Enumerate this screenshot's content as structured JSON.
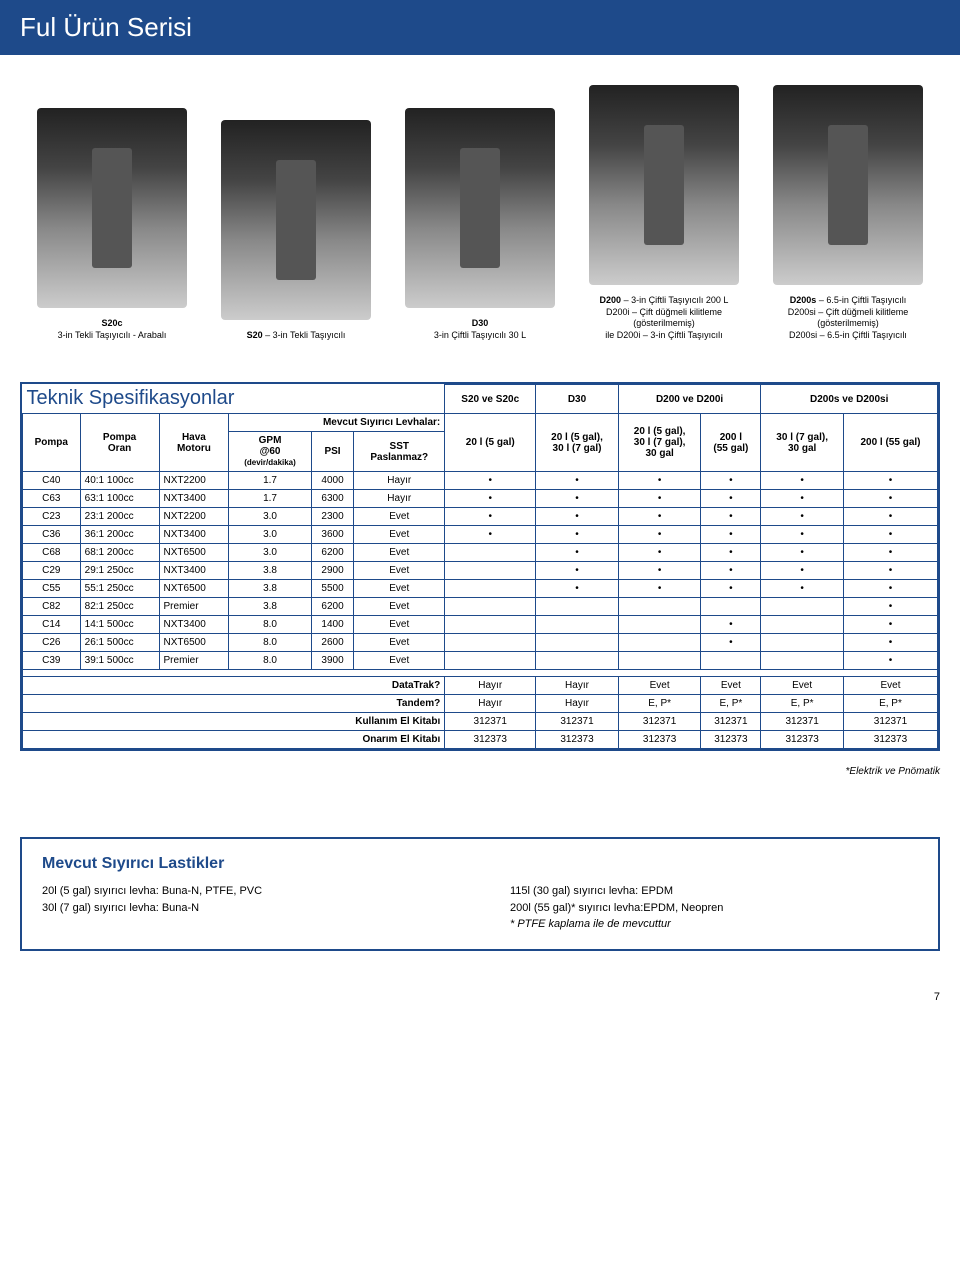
{
  "page": {
    "title": "Ful Ürün Serisi",
    "page_number": "7"
  },
  "products": [
    {
      "label_bold": "S20c",
      "label_lines": [
        "3-in Tekli Taşıyıcılı - Arabalı"
      ]
    },
    {
      "label_bold": "S20",
      "label_lines": [
        "– 3-in Tekli Taşıyıcılı"
      ]
    },
    {
      "label_bold": "D30",
      "label_lines": [
        "3-in Çiftli Taşıyıcılı 30 L"
      ]
    },
    {
      "label_bold": "D200",
      "label_lines": [
        "– 3-in Çiftli Taşıyıcılı 200 L",
        "D200i – Çift düğmeli kilitleme (gösterilmemiş)",
        "ile D200i – 3-in Çiftli Taşıyıcılı"
      ]
    },
    {
      "label_bold": "D200s",
      "label_lines": [
        "– 6.5-in Çiftli Taşıyıcılı",
        "D200si – Çift düğmeli kilitleme (gösterilmemiş)",
        "D200si – 6.5-in Çiftli Taşıyıcılı"
      ]
    }
  ],
  "spec_table": {
    "title": "Teknik Spesifikasyonlar",
    "top_groups": [
      "S20 ve S20c",
      "D30",
      "D200 ve D200i",
      "D200s ve D200si"
    ],
    "levhalar_label": "Mevcut Sıyırıcı Levhalar:",
    "levhalar_cols": [
      "20 l (5 gal)",
      "20 l (5 gal),\n30 l (7 gal)",
      "20 l (5 gal),\n30 l (7 gal),\n30 gal",
      "200 l\n(55 gal)",
      "30 l (7 gal),\n30 gal",
      "200 l (55 gal)"
    ],
    "col_headers": {
      "pompa": "Pompa",
      "oran": "Pompa\nOran",
      "motor": "Hava\nMotoru",
      "gpm": "GPM\n@60",
      "gpm_sub": "(devir/dakika)",
      "psi": "PSI",
      "sst": "SST\nPaslanmaz?"
    },
    "rows": [
      {
        "p": "C40",
        "o": "40:1 100cc",
        "m": "NXT2200",
        "g": "1.7",
        "psi": "4000",
        "sst": "Hayır",
        "d": [
          "•",
          "•",
          "•",
          "•",
          "•",
          "•"
        ]
      },
      {
        "p": "C63",
        "o": "63:1 100cc",
        "m": "NXT3400",
        "g": "1.7",
        "psi": "6300",
        "sst": "Hayır",
        "d": [
          "•",
          "•",
          "•",
          "•",
          "•",
          "•"
        ]
      },
      {
        "p": "C23",
        "o": "23:1 200cc",
        "m": "NXT2200",
        "g": "3.0",
        "psi": "2300",
        "sst": "Evet",
        "d": [
          "•",
          "•",
          "•",
          "•",
          "•",
          "•"
        ]
      },
      {
        "p": "C36",
        "o": "36:1 200cc",
        "m": "NXT3400",
        "g": "3.0",
        "psi": "3600",
        "sst": "Evet",
        "d": [
          "•",
          "•",
          "•",
          "•",
          "•",
          "•"
        ]
      },
      {
        "p": "C68",
        "o": "68:1 200cc",
        "m": "NXT6500",
        "g": "3.0",
        "psi": "6200",
        "sst": "Evet",
        "d": [
          "",
          "•",
          "•",
          "•",
          "•",
          "•"
        ]
      },
      {
        "p": "C29",
        "o": "29:1 250cc",
        "m": "NXT3400",
        "g": "3.8",
        "psi": "2900",
        "sst": "Evet",
        "d": [
          "",
          "•",
          "•",
          "•",
          "•",
          "•"
        ]
      },
      {
        "p": "C55",
        "o": "55:1 250cc",
        "m": "NXT6500",
        "g": "3.8",
        "psi": "5500",
        "sst": "Evet",
        "d": [
          "",
          "•",
          "•",
          "•",
          "•",
          "•"
        ]
      },
      {
        "p": "C82",
        "o": "82:1 250cc",
        "m": "Premier",
        "g": "3.8",
        "psi": "6200",
        "sst": "Evet",
        "d": [
          "",
          "",
          "",
          "",
          "",
          "•"
        ]
      },
      {
        "p": "C14",
        "o": "14:1 500cc",
        "m": "NXT3400",
        "g": "8.0",
        "psi": "1400",
        "sst": "Evet",
        "d": [
          "",
          "",
          "",
          "•",
          "",
          "•"
        ]
      },
      {
        "p": "C26",
        "o": "26:1 500cc",
        "m": "NXT6500",
        "g": "8.0",
        "psi": "2600",
        "sst": "Evet",
        "d": [
          "",
          "",
          "",
          "•",
          "",
          "•"
        ]
      },
      {
        "p": "C39",
        "o": "39:1 500cc",
        "m": "Premier",
        "g": "8.0",
        "psi": "3900",
        "sst": "Evet",
        "d": [
          "",
          "",
          "",
          "",
          "",
          "•"
        ]
      }
    ],
    "footer_rows": [
      {
        "label": "DataTrak?",
        "vals": [
          "Hayır",
          "Hayır",
          "Evet",
          "Evet",
          "Evet",
          "Evet"
        ]
      },
      {
        "label": "Tandem?",
        "vals": [
          "Hayır",
          "Hayır",
          "E, P*",
          "E, P*",
          "E, P*",
          "E, P*"
        ]
      },
      {
        "label": "Kullanım El Kitabı",
        "vals": [
          "312371",
          "312371",
          "312371",
          "312371",
          "312371",
          "312371"
        ]
      },
      {
        "label": "Onarım El Kitabı",
        "vals": [
          "312373",
          "312373",
          "312373",
          "312373",
          "312373",
          "312373"
        ]
      }
    ],
    "footnote": "*Elektrik ve Pnömatik"
  },
  "wiper": {
    "title": "Mevcut Sıyırıcı Lastikler",
    "left": [
      "20l (5 gal) sıyırıcı levha: Buna-N, PTFE, PVC",
      "30l (7 gal) sıyırıcı levha: Buna-N"
    ],
    "right": [
      "115l (30 gal) sıyırıcı levha: EPDM",
      "200l (55 gal)* sıyırıcı levha:EPDM, Neopren",
      "* PTFE kaplama ile de mevcuttur"
    ]
  },
  "colors": {
    "brand_blue": "#1e4a8a",
    "text": "#000000",
    "bg": "#ffffff"
  }
}
